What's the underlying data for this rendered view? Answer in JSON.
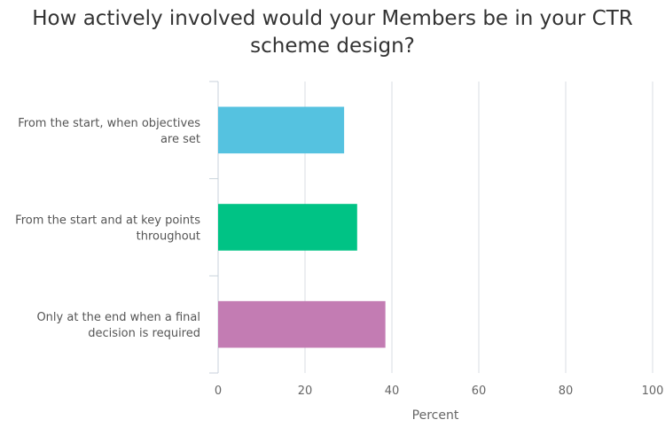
{
  "chart_data": {
    "type": "bar",
    "orientation": "horizontal",
    "title": [
      "How actively involved would your Members be in your CTR",
      "scheme design?"
    ],
    "categories": [
      [
        "From the start, when objectives",
        "are set"
      ],
      [
        "From the start and at key points",
        "throughout"
      ],
      [
        "Only at the end when a final",
        "decision is required"
      ]
    ],
    "values": [
      29,
      32,
      38.5
    ],
    "colors": [
      "#55c2e0",
      "#00c385",
      "#c37cb3"
    ],
    "xlabel": "Percent",
    "xlim": [
      0,
      100
    ],
    "ticks": [
      0,
      20,
      40,
      60,
      80,
      100
    ],
    "grid": true
  }
}
